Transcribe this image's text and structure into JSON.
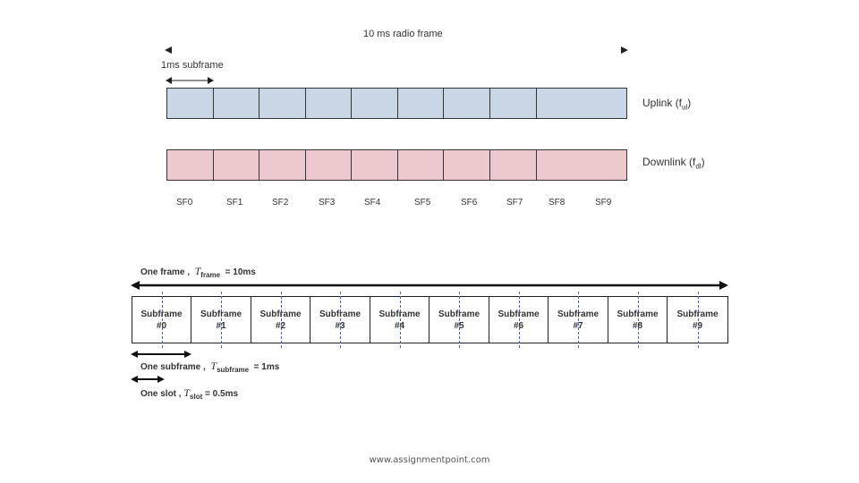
{
  "top_diagram": {
    "radio_frame_label": "10 ms radio frame",
    "subframe_label": "1ms subframe",
    "uplink_label": "Uplink (f",
    "uplink_sub": "ul",
    "downlink_label": "Downlink (f",
    "downlink_sub": "dl",
    "subframes": [
      "SF0",
      "SF1",
      "SF2",
      "SF3",
      "SF4",
      "SF5",
      "SF6",
      "SF7",
      "SF8",
      "SF9"
    ],
    "colors": {
      "uplink": "#c9d6e6",
      "downlink": "#ecc9cc"
    }
  },
  "bottom_diagram": {
    "frame_prefix": "One frame ,",
    "frame_symbol": "T",
    "frame_sub": "frame",
    "frame_value": "= 10ms",
    "subframe_prefix": "One subframe ,",
    "subframe_symbol": "T",
    "subframe_sub": "subframe",
    "subframe_value": "= 1ms",
    "slot_prefix": "One slot ,",
    "slot_symbol": "T",
    "slot_sub": "slot",
    "slot_value": "= 0.5ms",
    "cells": [
      {
        "line1": "Subframe",
        "line2": "#0"
      },
      {
        "line1": "Subframe",
        "line2": "#1"
      },
      {
        "line1": "Subframe",
        "line2": "#2"
      },
      {
        "line1": "Subframe",
        "line2": "#3"
      },
      {
        "line1": "Subframe",
        "line2": "#4"
      },
      {
        "line1": "Subframe",
        "line2": "#5"
      },
      {
        "line1": "Subframe",
        "line2": "#6"
      },
      {
        "line1": "Subframe",
        "line2": "#7"
      },
      {
        "line1": "Subframe",
        "line2": "#8"
      },
      {
        "line1": "Subframe",
        "line2": "#9"
      }
    ]
  },
  "footer": "www.assignmentpoint.com"
}
